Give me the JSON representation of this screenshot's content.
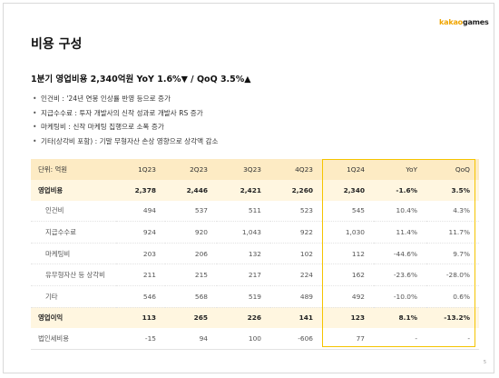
{
  "brand": {
    "part1": "kakao",
    "part2": "games"
  },
  "page_title": "비용 구성",
  "headline": "1분기 영업비용 2,340억원 YoY 1.6%▼ / QoQ 3.5%▲",
  "bullets": [
    "인건비 : '24년 연봉 인상률 반영 등으로 증가",
    "지급수수료 : 투자 개발사의 신작 성과로 개발사 RS 증가",
    "마케팅비 : 신작 마케팅 집행으로 소폭 증가",
    "기타(상각비 포함) : 기말 무형자산 손상 영향으로 상각액 감소"
  ],
  "table": {
    "headers": [
      "단위: 억원",
      "1Q23",
      "2Q23",
      "3Q23",
      "4Q23",
      "1Q24",
      "YoY",
      "QoQ"
    ],
    "rows": [
      [
        "영업비용",
        "2,378",
        "2,446",
        "2,421",
        "2,260",
        "2,340",
        "-1.6%",
        "3.5%"
      ],
      [
        "인건비",
        "494",
        "537",
        "511",
        "523",
        "545",
        "10.4%",
        "4.3%"
      ],
      [
        "지급수수료",
        "924",
        "920",
        "1,043",
        "922",
        "1,030",
        "11.4%",
        "11.7%"
      ],
      [
        "마케팅비",
        "203",
        "206",
        "132",
        "102",
        "112",
        "-44.6%",
        "9.7%"
      ],
      [
        "유무형자산 등 상각비",
        "211",
        "215",
        "217",
        "224",
        "162",
        "-23.6%",
        "-28.0%"
      ],
      [
        "기타",
        "546",
        "568",
        "519",
        "489",
        "492",
        "-10.0%",
        "0.6%"
      ],
      [
        "영업이익",
        "113",
        "265",
        "226",
        "141",
        "123",
        "8.1%",
        "-13.2%"
      ],
      [
        "법인세비용",
        "-15",
        "94",
        "100",
        "-606",
        "77",
        "-",
        "-"
      ]
    ]
  },
  "page_number": "5",
  "colors": {
    "accent": "#f5c400",
    "header_bg": "#fdebc4",
    "brand_orange": "#f0a500"
  }
}
